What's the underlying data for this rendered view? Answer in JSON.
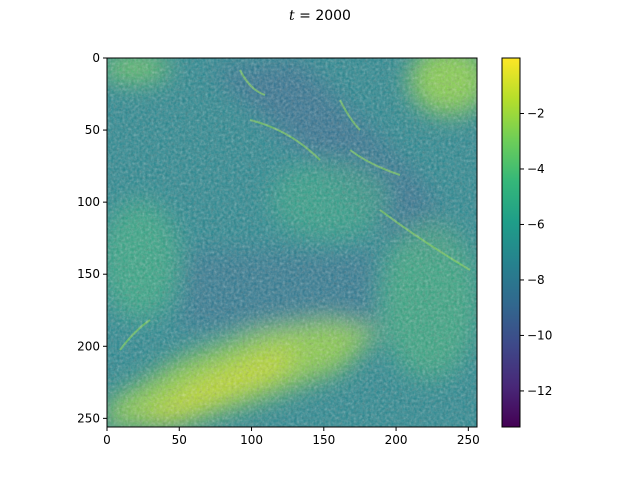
{
  "chart_data": {
    "type": "heatmap",
    "title_var": "t",
    "title_eq": " = 2000",
    "x_ticks": [
      0,
      50,
      100,
      150,
      200,
      250
    ],
    "y_ticks": [
      0,
      50,
      100,
      150,
      200,
      250
    ],
    "x_range": [
      0,
      256
    ],
    "y_range": [
      0,
      256
    ],
    "y_direction": "down",
    "colorbar": {
      "range": [
        -13.3,
        0
      ],
      "ticks": [
        -2,
        -4,
        -6,
        -8,
        -10,
        -12
      ],
      "tick_labels": [
        "−2",
        "−4",
        "−6",
        "−8",
        "−10",
        "−12"
      ],
      "colormap": "viridis"
    },
    "description_features": [
      "bright band lower-left",
      "bright corner upper-right",
      "bright top-left corner",
      "diagonal dark streak",
      "filament structures"
    ]
  },
  "colors": {
    "viridis": [
      "#440154",
      "#482878",
      "#3e4989",
      "#31688e",
      "#26828e",
      "#1f9e89",
      "#35b779",
      "#6ece58",
      "#b5de2b",
      "#fde725"
    ]
  }
}
